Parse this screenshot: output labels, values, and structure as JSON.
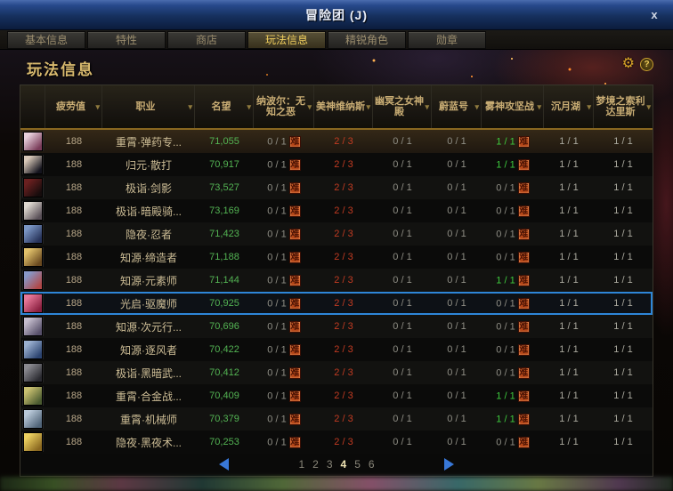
{
  "window": {
    "title": "冒险团 (J)",
    "close_glyph": "x"
  },
  "tabs": [
    {
      "id": "basic-info",
      "label": "基本信息",
      "active": false
    },
    {
      "id": "traits",
      "label": "特性",
      "active": false
    },
    {
      "id": "shop",
      "label": "商店",
      "active": false
    },
    {
      "id": "gameplay-info",
      "label": "玩法信息",
      "active": true
    },
    {
      "id": "elite-characters",
      "label": "精锐角色",
      "active": false
    },
    {
      "id": "medals",
      "label": "勋章",
      "active": false
    }
  ],
  "page": {
    "title": "玩法信息"
  },
  "badge_label": "难",
  "colors": {
    "fame_green": "#53b353",
    "value_green": "#3ecb3e",
    "value_red": "#c23b22",
    "value_gray": "#8f8e85",
    "value_light": "#a9a89d",
    "accent_gold": "#d9ba6e",
    "selection_blue": "#2e86d8",
    "badge_orange": "#c8501c",
    "header_gold_line": "#8a6820"
  },
  "table": {
    "headers": [
      {
        "id": "fatigue",
        "label": "疲劳值"
      },
      {
        "id": "job",
        "label": "职业"
      },
      {
        "id": "fame",
        "label": "名望"
      },
      {
        "id": "napoer",
        "label": "纳波尔：无知之恶"
      },
      {
        "id": "venus",
        "label": "美神维纳斯"
      },
      {
        "id": "underworld",
        "label": "幽冥之女神殿"
      },
      {
        "id": "azure",
        "label": "蔚蓝号"
      },
      {
        "id": "fog-god",
        "label": "雾神攻坚战"
      },
      {
        "id": "moon-lake",
        "label": "沉月湖"
      },
      {
        "id": "dream",
        "label": "梦境之索利达里斯"
      }
    ],
    "rows": [
      {
        "fatigue": "188",
        "job": "重霄·弹药专...",
        "fame": "71,055",
        "selected": false,
        "hover": true,
        "avatar": [
          "#e8d0dc",
          "#7a3c5a"
        ],
        "cells": [
          {
            "v": "0 / 1",
            "s": "gray",
            "b": true
          },
          {
            "v": "2 / 3",
            "s": "red"
          },
          {
            "v": "0 / 1",
            "s": "gray"
          },
          {
            "v": "0 / 1",
            "s": "gray"
          },
          {
            "v": "1 / 1",
            "s": "green",
            "b": true
          },
          {
            "v": "1 / 1",
            "s": "lt"
          },
          {
            "v": "1 / 1",
            "s": "lt"
          }
        ]
      },
      {
        "fatigue": "188",
        "job": "归元·散打",
        "fame": "70,917",
        "selected": false,
        "hover": false,
        "avatar": [
          "#d8c8b8",
          "#14141e"
        ],
        "cells": [
          {
            "v": "0 / 1",
            "s": "gray",
            "b": true
          },
          {
            "v": "2 / 3",
            "s": "red"
          },
          {
            "v": "0 / 1",
            "s": "gray"
          },
          {
            "v": "0 / 1",
            "s": "gray"
          },
          {
            "v": "1 / 1",
            "s": "green",
            "b": true
          },
          {
            "v": "1 / 1",
            "s": "lt"
          },
          {
            "v": "1 / 1",
            "s": "lt"
          }
        ]
      },
      {
        "fatigue": "188",
        "job": "极诣·剑影",
        "fame": "73,527",
        "selected": false,
        "hover": false,
        "avatar": [
          "#6a2020",
          "#160c0c"
        ],
        "cells": [
          {
            "v": "0 / 1",
            "s": "gray",
            "b": true
          },
          {
            "v": "2 / 3",
            "s": "red"
          },
          {
            "v": "0 / 1",
            "s": "gray"
          },
          {
            "v": "0 / 1",
            "s": "gray"
          },
          {
            "v": "0 / 1",
            "s": "gray",
            "b": true
          },
          {
            "v": "1 / 1",
            "s": "lt"
          },
          {
            "v": "1 / 1",
            "s": "lt"
          }
        ]
      },
      {
        "fatigue": "188",
        "job": "极诣·暗殿骑...",
        "fame": "73,169",
        "selected": false,
        "hover": false,
        "avatar": [
          "#ded8d0",
          "#5a5058"
        ],
        "cells": [
          {
            "v": "0 / 1",
            "s": "gray",
            "b": true
          },
          {
            "v": "2 / 3",
            "s": "red"
          },
          {
            "v": "0 / 1",
            "s": "gray"
          },
          {
            "v": "0 / 1",
            "s": "gray"
          },
          {
            "v": "0 / 1",
            "s": "gray",
            "b": true
          },
          {
            "v": "1 / 1",
            "s": "lt"
          },
          {
            "v": "1 / 1",
            "s": "lt"
          }
        ]
      },
      {
        "fatigue": "188",
        "job": "隐夜·忍者",
        "fame": "71,423",
        "selected": false,
        "hover": false,
        "avatar": [
          "#7a96c4",
          "#27335a"
        ],
        "cells": [
          {
            "v": "0 / 1",
            "s": "gray",
            "b": true
          },
          {
            "v": "2 / 3",
            "s": "red"
          },
          {
            "v": "0 / 1",
            "s": "gray"
          },
          {
            "v": "0 / 1",
            "s": "gray"
          },
          {
            "v": "0 / 1",
            "s": "gray",
            "b": true
          },
          {
            "v": "1 / 1",
            "s": "lt"
          },
          {
            "v": "1 / 1",
            "s": "lt"
          }
        ]
      },
      {
        "fatigue": "188",
        "job": "知源·缔造者",
        "fame": "71,188",
        "selected": false,
        "hover": false,
        "avatar": [
          "#e0c06a",
          "#6a4a20"
        ],
        "cells": [
          {
            "v": "0 / 1",
            "s": "gray",
            "b": true
          },
          {
            "v": "2 / 3",
            "s": "red"
          },
          {
            "v": "0 / 1",
            "s": "gray"
          },
          {
            "v": "0 / 1",
            "s": "gray"
          },
          {
            "v": "0 / 1",
            "s": "gray",
            "b": true
          },
          {
            "v": "1 / 1",
            "s": "lt"
          },
          {
            "v": "1 / 1",
            "s": "lt"
          }
        ]
      },
      {
        "fatigue": "188",
        "job": "知源·元素师",
        "fame": "71,144",
        "selected": false,
        "hover": false,
        "avatar": [
          "#8898c8",
          "#b04848"
        ],
        "cells": [
          {
            "v": "0 / 1",
            "s": "gray",
            "b": true
          },
          {
            "v": "2 / 3",
            "s": "red"
          },
          {
            "v": "0 / 1",
            "s": "gray"
          },
          {
            "v": "0 / 1",
            "s": "gray"
          },
          {
            "v": "1 / 1",
            "s": "green",
            "b": true
          },
          {
            "v": "1 / 1",
            "s": "lt"
          },
          {
            "v": "1 / 1",
            "s": "lt"
          }
        ]
      },
      {
        "fatigue": "188",
        "job": "光启·驱魔师",
        "fame": "70,925",
        "selected": true,
        "hover": false,
        "avatar": [
          "#e87898",
          "#8a2040"
        ],
        "cells": [
          {
            "v": "0 / 1",
            "s": "gray",
            "b": true
          },
          {
            "v": "2 / 3",
            "s": "red"
          },
          {
            "v": "0 / 1",
            "s": "gray"
          },
          {
            "v": "0 / 1",
            "s": "gray"
          },
          {
            "v": "0 / 1",
            "s": "gray",
            "b": true
          },
          {
            "v": "1 / 1",
            "s": "lt"
          },
          {
            "v": "1 / 1",
            "s": "lt"
          }
        ]
      },
      {
        "fatigue": "188",
        "job": "知源·次元行...",
        "fame": "70,696",
        "selected": false,
        "hover": false,
        "avatar": [
          "#c4bccc",
          "#57506a"
        ],
        "cells": [
          {
            "v": "0 / 1",
            "s": "gray",
            "b": true
          },
          {
            "v": "2 / 3",
            "s": "red"
          },
          {
            "v": "0 / 1",
            "s": "gray"
          },
          {
            "v": "0 / 1",
            "s": "gray"
          },
          {
            "v": "0 / 1",
            "s": "gray",
            "b": true
          },
          {
            "v": "1 / 1",
            "s": "lt"
          },
          {
            "v": "1 / 1",
            "s": "lt"
          }
        ]
      },
      {
        "fatigue": "188",
        "job": "知源·逐风者",
        "fame": "70,422",
        "selected": false,
        "hover": false,
        "avatar": [
          "#9ab0d0",
          "#2c4470"
        ],
        "cells": [
          {
            "v": "0 / 1",
            "s": "gray",
            "b": true
          },
          {
            "v": "2 / 3",
            "s": "red"
          },
          {
            "v": "0 / 1",
            "s": "gray"
          },
          {
            "v": "0 / 1",
            "s": "gray"
          },
          {
            "v": "0 / 1",
            "s": "gray",
            "b": true
          },
          {
            "v": "1 / 1",
            "s": "lt"
          },
          {
            "v": "1 / 1",
            "s": "lt"
          }
        ]
      },
      {
        "fatigue": "188",
        "job": "极诣·黑暗武...",
        "fame": "70,412",
        "selected": false,
        "hover": false,
        "avatar": [
          "#8a8a90",
          "#2a2a30"
        ],
        "cells": [
          {
            "v": "0 / 1",
            "s": "gray",
            "b": true
          },
          {
            "v": "2 / 3",
            "s": "red"
          },
          {
            "v": "0 / 1",
            "s": "gray"
          },
          {
            "v": "0 / 1",
            "s": "gray"
          },
          {
            "v": "0 / 1",
            "s": "gray",
            "b": true
          },
          {
            "v": "1 / 1",
            "s": "lt"
          },
          {
            "v": "1 / 1",
            "s": "lt"
          }
        ]
      },
      {
        "fatigue": "188",
        "job": "重霄·合金战...",
        "fame": "70,409",
        "selected": false,
        "hover": false,
        "avatar": [
          "#c8c070",
          "#4a5a30"
        ],
        "cells": [
          {
            "v": "0 / 1",
            "s": "gray",
            "b": true
          },
          {
            "v": "2 / 3",
            "s": "red"
          },
          {
            "v": "0 / 1",
            "s": "gray"
          },
          {
            "v": "0 / 1",
            "s": "gray"
          },
          {
            "v": "1 / 1",
            "s": "green",
            "b": true
          },
          {
            "v": "1 / 1",
            "s": "lt"
          },
          {
            "v": "1 / 1",
            "s": "lt"
          }
        ]
      },
      {
        "fatigue": "188",
        "job": "重霄·机械师",
        "fame": "70,379",
        "selected": false,
        "hover": false,
        "avatar": [
          "#b8c8d8",
          "#506478"
        ],
        "cells": [
          {
            "v": "0 / 1",
            "s": "gray",
            "b": true
          },
          {
            "v": "2 / 3",
            "s": "red"
          },
          {
            "v": "0 / 1",
            "s": "gray"
          },
          {
            "v": "0 / 1",
            "s": "gray"
          },
          {
            "v": "1 / 1",
            "s": "green",
            "b": true
          },
          {
            "v": "1 / 1",
            "s": "lt"
          },
          {
            "v": "1 / 1",
            "s": "lt"
          }
        ]
      },
      {
        "fatigue": "188",
        "job": "隐夜·黑夜术...",
        "fame": "70,253",
        "selected": false,
        "hover": false,
        "avatar": [
          "#ecd060",
          "#8a6820"
        ],
        "cells": [
          {
            "v": "0 / 1",
            "s": "gray",
            "b": true
          },
          {
            "v": "2 / 3",
            "s": "red"
          },
          {
            "v": "0 / 1",
            "s": "gray"
          },
          {
            "v": "0 / 1",
            "s": "gray"
          },
          {
            "v": "0 / 1",
            "s": "gray",
            "b": true
          },
          {
            "v": "1 / 1",
            "s": "lt"
          },
          {
            "v": "1 / 1",
            "s": "lt"
          }
        ]
      }
    ]
  },
  "pagination": {
    "pages": [
      "1",
      "2",
      "3",
      "4",
      "5",
      "6"
    ],
    "current": "4"
  }
}
